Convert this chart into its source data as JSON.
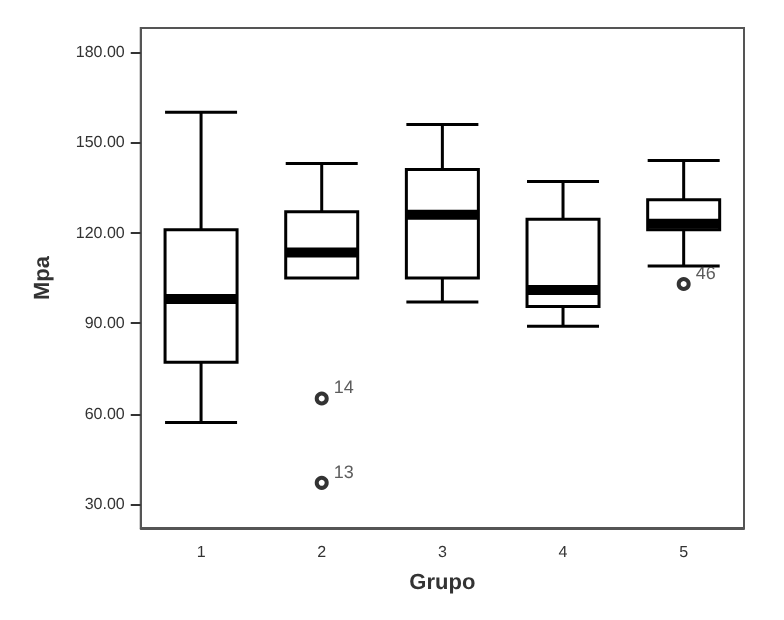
{
  "chart_data": {
    "type": "box",
    "xlabel": "Grupo",
    "ylabel": "Mpa",
    "categories": [
      "1",
      "2",
      "3",
      "4",
      "5"
    ],
    "boxes": [
      {
        "low": 57,
        "q1": 77,
        "median": 98,
        "q3": 121,
        "high": 160
      },
      {
        "low": 105,
        "q1": 105,
        "median": 113.5,
        "q3": 127,
        "high": 143,
        "outliers": [
          65,
          37
        ]
      },
      {
        "low": 97,
        "q1": 105,
        "median": 126,
        "q3": 141,
        "high": 156
      },
      {
        "low": 89,
        "q1": 95.5,
        "median": 101,
        "q3": 124.5,
        "high": 137
      },
      {
        "low": 109,
        "q1": 121,
        "median": 123,
        "q3": 131,
        "high": 144,
        "outliers": [
          103
        ]
      }
    ],
    "color": "#000000",
    "ylim": [
      22,
      188
    ],
    "yticks": [
      {
        "value": 30,
        "label": "30.00"
      },
      {
        "value": 60,
        "label": "60.00"
      },
      {
        "value": 90,
        "label": "90.00"
      },
      {
        "value": 120,
        "label": "120.00"
      },
      {
        "value": 150,
        "label": "150.00"
      },
      {
        "value": 180,
        "label": "180.00"
      }
    ],
    "grid": false,
    "annotations": [
      "14",
      "13",
      "46"
    ]
  }
}
